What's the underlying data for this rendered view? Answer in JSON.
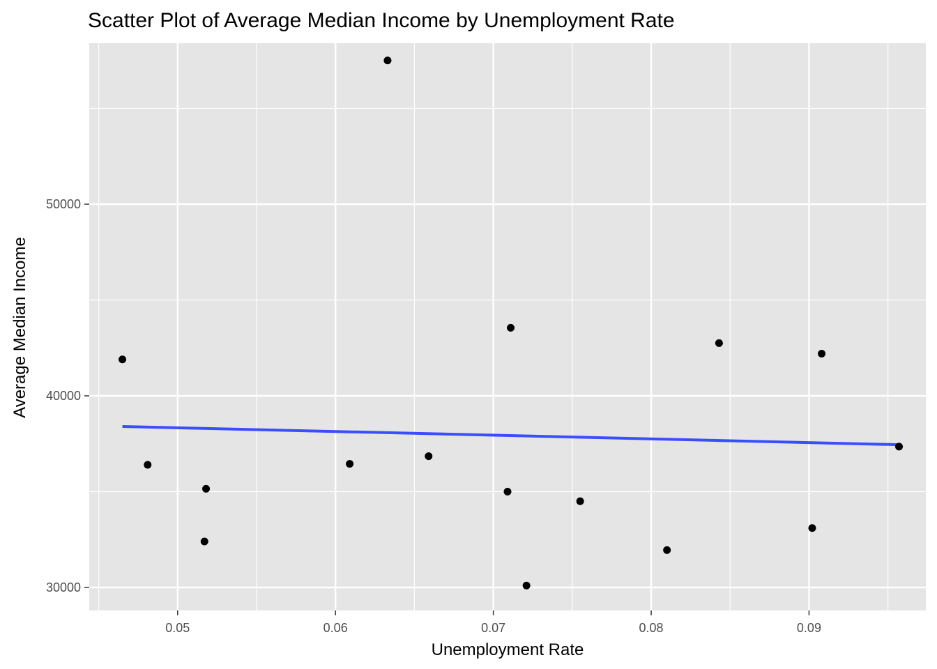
{
  "chart_data": {
    "type": "scatter",
    "title": "Scatter Plot of Average Median Income by Unemployment Rate",
    "xlabel": "Unemployment Rate",
    "ylabel": "Average Median Income",
    "xlim": [
      0.0444,
      0.0974
    ],
    "ylim": [
      28800,
      58400
    ],
    "x_ticks": [
      0.05,
      0.06,
      0.07,
      0.08,
      0.09
    ],
    "x_tick_labels": [
      "0.05",
      "0.06",
      "0.07",
      "0.08",
      "0.09"
    ],
    "y_ticks": [
      30000,
      40000,
      50000
    ],
    "y_tick_labels": [
      "30000",
      "40000",
      "50000"
    ],
    "grid": true,
    "background_color": "#e5e5e5",
    "point_color": "#000000",
    "trend_line_color": "#3a4eff",
    "points": [
      {
        "x": 0.0465,
        "y": 41900
      },
      {
        "x": 0.0481,
        "y": 36400
      },
      {
        "x": 0.0517,
        "y": 32400
      },
      {
        "x": 0.0518,
        "y": 35150
      },
      {
        "x": 0.0609,
        "y": 36450
      },
      {
        "x": 0.0633,
        "y": 57500
      },
      {
        "x": 0.0659,
        "y": 36850
      },
      {
        "x": 0.0709,
        "y": 35000
      },
      {
        "x": 0.0711,
        "y": 43550
      },
      {
        "x": 0.0721,
        "y": 30100
      },
      {
        "x": 0.0755,
        "y": 34500
      },
      {
        "x": 0.081,
        "y": 31950
      },
      {
        "x": 0.0843,
        "y": 42750
      },
      {
        "x": 0.0902,
        "y": 33100
      },
      {
        "x": 0.0908,
        "y": 42200
      },
      {
        "x": 0.0957,
        "y": 37350
      }
    ],
    "trend_line": {
      "x": [
        0.0465,
        0.0957
      ],
      "y": [
        38400,
        37450
      ]
    }
  }
}
